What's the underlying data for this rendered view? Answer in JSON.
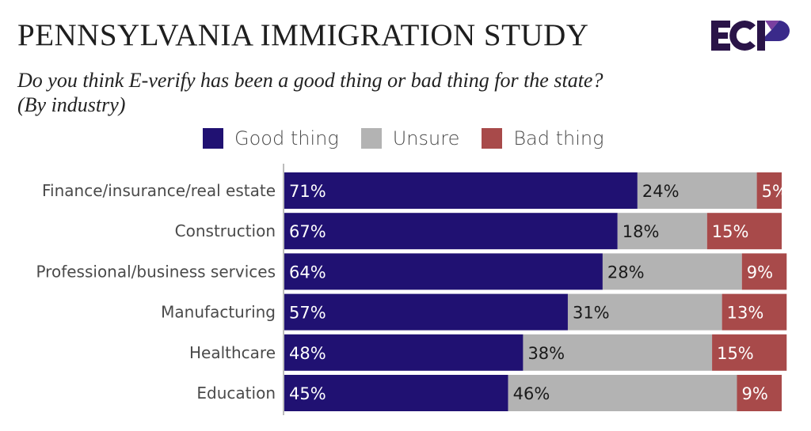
{
  "header": {
    "title": "PENNSYLVANIA IMMIGRATION STUDY",
    "subtitle_line1": "Do you think E-verify has been a good thing or bad thing for the state?",
    "subtitle_line2": "(By industry)",
    "logo_text": "ECP"
  },
  "colors": {
    "good": "#201172",
    "unsure": "#b3b3b3",
    "bad": "#a84a4a",
    "logo_dark": "#2a1448",
    "logo_purple": "#7b3fa0",
    "logo_blue": "#3a2a8a"
  },
  "legend": [
    {
      "label": "Good thing",
      "key": "good"
    },
    {
      "label": "Unsure",
      "key": "unsure"
    },
    {
      "label": "Bad thing",
      "key": "bad"
    }
  ],
  "chart_data": {
    "type": "bar",
    "orientation": "horizontal",
    "stacked": true,
    "title": "PENNSYLVANIA IMMIGRATION STUDY",
    "subtitle": "Do you think E-verify has been a good thing or bad thing for the state? (By industry)",
    "xlabel": "",
    "ylabel": "",
    "xlim": [
      0,
      100
    ],
    "grid": false,
    "legend_position": "top",
    "categories": [
      "Finance/insurance/real estate",
      "Construction",
      "Professional/business services",
      "Manufacturing",
      "Healthcare",
      "Education"
    ],
    "series": [
      {
        "name": "Good thing",
        "key": "good",
        "values": [
          71,
          67,
          64,
          57,
          48,
          45
        ],
        "labels": [
          "71%",
          "67%",
          "64%",
          "57%",
          "48%",
          "45%"
        ]
      },
      {
        "name": "Unsure",
        "key": "unsure",
        "values": [
          24,
          18,
          28,
          31,
          38,
          46
        ],
        "labels": [
          "24%",
          "18%",
          "28%",
          "31%",
          "38%",
          "46%"
        ]
      },
      {
        "name": "Bad thing",
        "key": "bad",
        "values": [
          5,
          15,
          9,
          13,
          15,
          9
        ],
        "labels": [
          "5%",
          "15%",
          "9%",
          "13%",
          "15%",
          "9%"
        ]
      }
    ]
  }
}
